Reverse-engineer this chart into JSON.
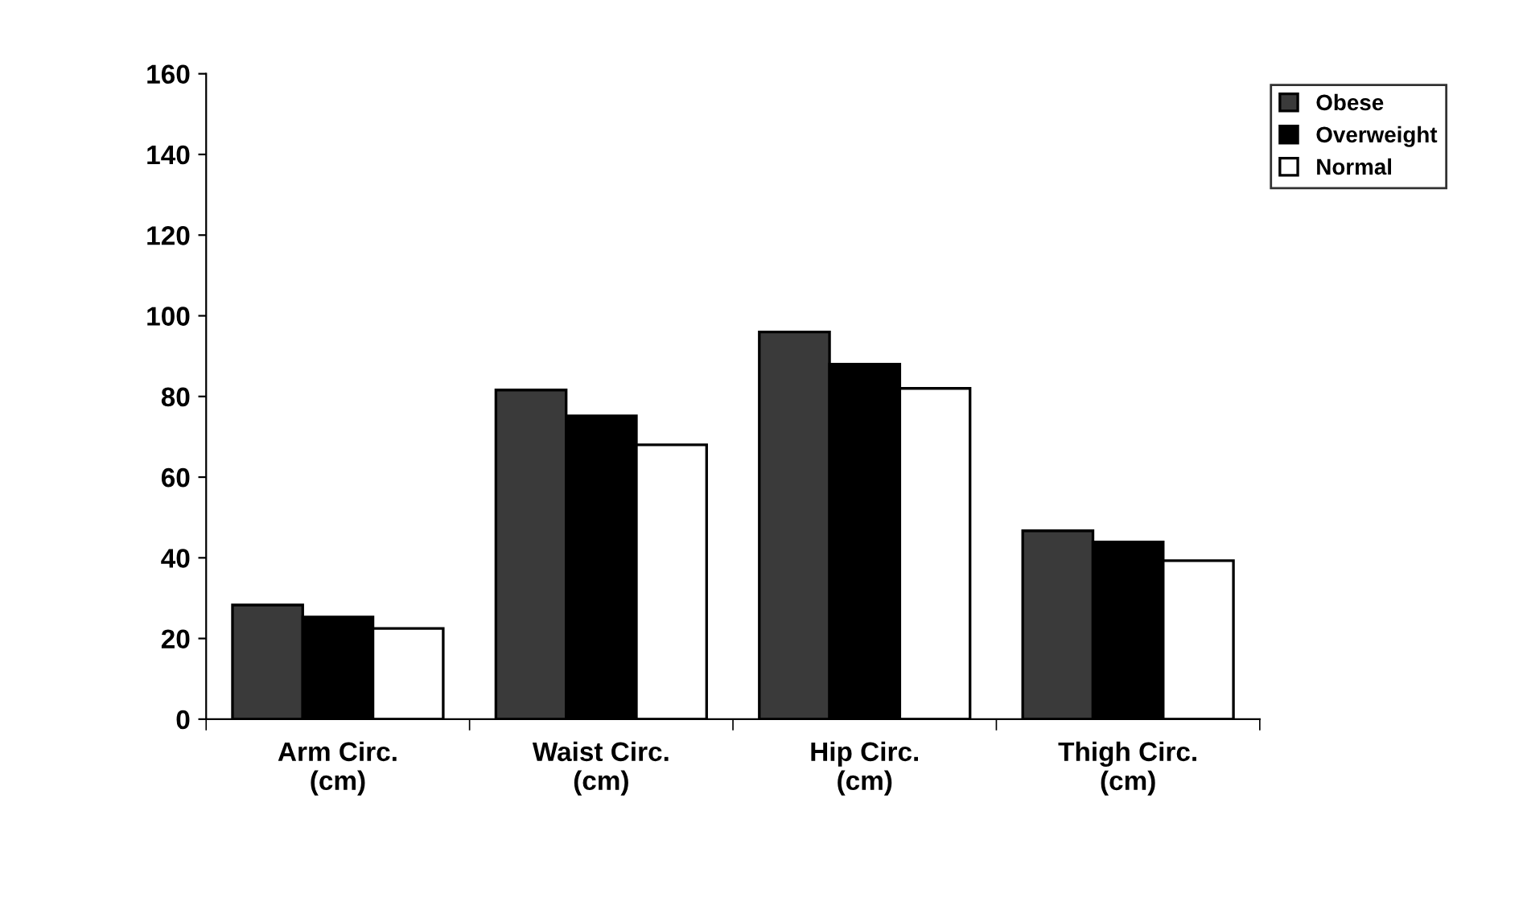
{
  "chart_data": {
    "type": "bar",
    "categories": [
      "Arm Circ.\n(cm)",
      "Waist Circ.\n(cm)",
      "Hip Circ.\n(cm)",
      "Thigh Circ.\n(cm)"
    ],
    "series": [
      {
        "name": "Obese",
        "color": "#3a3a3a",
        "values": [
          28.3,
          81.6,
          96,
          46.7
        ]
      },
      {
        "name": "Overweight",
        "color": "#000000",
        "values": [
          25.3,
          75.2,
          88,
          43.9
        ]
      },
      {
        "name": "Normal",
        "color": "#ffffff",
        "values": [
          22.5,
          68,
          82,
          39.3
        ]
      }
    ],
    "ylim": [
      0,
      160
    ],
    "yticks": [
      0,
      20,
      40,
      60,
      80,
      100,
      120,
      140,
      160
    ],
    "grid": false,
    "legend": "top right"
  }
}
